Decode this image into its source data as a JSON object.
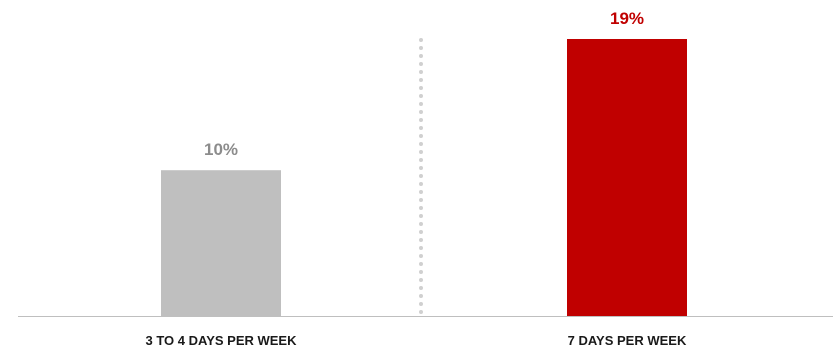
{
  "chart_data": {
    "type": "bar",
    "title": "",
    "xlabel": "",
    "ylabel": "",
    "categories": [
      "3 TO 4 DAYS PER WEEK",
      "7 DAYS PER WEEK"
    ],
    "values": [
      10,
      19
    ],
    "value_labels": [
      "10%",
      "19%"
    ],
    "ylim": [
      0,
      19
    ],
    "grid": false,
    "legend": "none",
    "bar_colors": [
      "#bfbfbf",
      "#c00000"
    ],
    "value_label_colors": [
      "#8c8c8c",
      "#c00000"
    ],
    "baseline_color": "#bfbfbf",
    "divider": {
      "style": "dotted",
      "color": "#d0d0d0"
    }
  }
}
